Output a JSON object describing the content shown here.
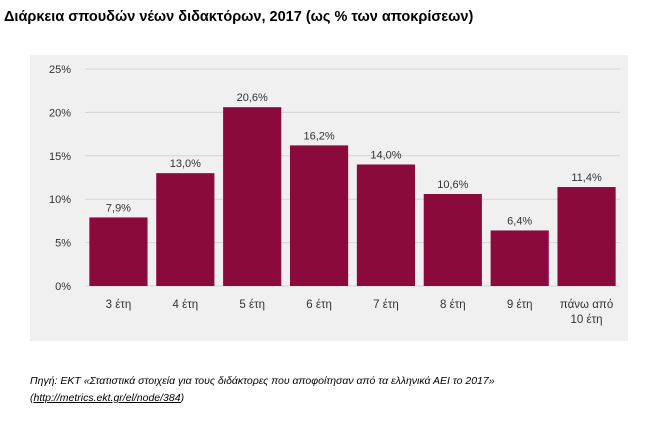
{
  "chart_data": {
    "type": "bar",
    "title": "Διάρκεια σπουδών νέων διδακτόρων, 2017 (ως % των αποκρίσεων)",
    "categories": [
      [
        "3 έτη"
      ],
      [
        "4 έτη"
      ],
      [
        "5 έτη"
      ],
      [
        "6 έτη"
      ],
      [
        "7 έτη"
      ],
      [
        "8 έτη"
      ],
      [
        "9 έτη"
      ],
      [
        "πάνω από",
        "10 έτη"
      ]
    ],
    "values": [
      7.9,
      13.0,
      20.6,
      16.2,
      14.0,
      10.6,
      6.4,
      11.4
    ],
    "value_labels": [
      "7,9%",
      "13,0%",
      "20,6%",
      "16,2%",
      "14,0%",
      "10,6%",
      "6,4%",
      "11,4%"
    ],
    "yticks": [
      0,
      5,
      10,
      15,
      20,
      25
    ],
    "ytick_labels": [
      "0%",
      "5%",
      "10%",
      "15%",
      "20%",
      "25%"
    ],
    "ylim": [
      0,
      25
    ],
    "xlabel": "",
    "ylabel": "",
    "grid": true,
    "bar_color": "#8b0a3c",
    "grid_color": "#d4d4d4",
    "background_color": "#f0f0f0"
  },
  "source": {
    "line1": "Πηγή: ΕΚΤ «Στατιστικά στοιχεία για τους διδάκτορες που αποφοίτησαν από τα ελληνικά ΑΕΙ το 2017»",
    "open_paren": "(",
    "link": "http://metrics.ekt.gr/el/node/384",
    "close_paren": ")"
  }
}
